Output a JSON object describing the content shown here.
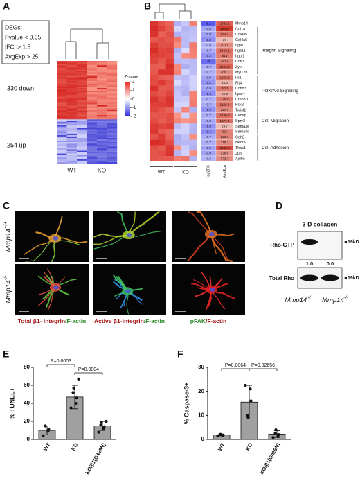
{
  "panels": {
    "A": {
      "label": "A",
      "box": [
        "DEGs:",
        "Pvalue < 0.05",
        "|FC| > 1.5",
        "AvgExp > 25"
      ],
      "down": "330 down",
      "up": "254 up",
      "groups": [
        "WT",
        "KO"
      ],
      "legend_title": "Z-score",
      "legend_ticks": [
        2,
        1,
        0,
        -1,
        -2
      ]
    },
    "B": {
      "label": "B",
      "genes": [
        "Mmp14",
        "Col1a1",
        "Col4a5",
        "Col4a6",
        "Itga1",
        "Itga11",
        "Itgbl1",
        "Ccn3",
        "Zyx",
        "Myl12b",
        "Irs1",
        "Flt4",
        "Ccnd3",
        "Lpar4",
        "Creb3l1",
        "Pck2",
        "Twist1",
        "Cemip",
        "Spry2",
        "Sema3e",
        "Sema3c",
        "Cdh2",
        "Nedd9",
        "Thbs1",
        "Jup",
        "Ajuba"
      ],
      "log2FC": [
        -5.1,
        -0.8,
        -0.9,
        -1.3,
        -0.6,
        -0.7,
        -1.2,
        -3,
        -0.7,
        -0.7,
        -0.9,
        -1.2,
        -0.9,
        -1.4,
        -0.7,
        -0.7,
        -1.2,
        -0.7,
        -0.8,
        -1.3,
        -1.4,
        -0.7,
        -0.7,
        -0.9,
        -0.9,
        -0.6
      ],
      "AvgExp": [
        2932.1,
        19419,
        944.4,
        27,
        301.9,
        1450.1,
        813,
        481.6,
        2656.3,
        266.1,
        1066.3,
        40.3,
        783.5,
        62.3,
        778.6,
        1128.8,
        327.7,
        1460.7,
        1377.6,
        29.7,
        482.4,
        536.7,
        316.3,
        8289.6,
        238.9,
        373.7
      ],
      "columns": [
        "log2FC",
        "AvgExp"
      ],
      "groups": [
        "WT",
        "KO"
      ],
      "pathways": [
        "Integrin Signaling",
        "PI3K/Akt Signaling",
        "Cell Migration",
        "Cell Adhesion"
      ]
    },
    "C": {
      "label": "C",
      "rows": [
        {
          "gene": "Mmp14",
          "genotype": "+/+"
        },
        {
          "gene": "Mmp14",
          "genotype": "-/-"
        }
      ],
      "captions": [
        [
          {
            "text": "Total β1- integrin",
            "color": "#a01414"
          },
          {
            "text": "/F-actin",
            "color": "#2a8a2a"
          }
        ],
        [
          {
            "text": "Active β1-integrin",
            "color": "#a01414"
          },
          {
            "text": "/F-actin",
            "color": "#2a8a2a"
          }
        ],
        [
          {
            "text": "pFAK",
            "color": "#2a8a2a"
          },
          {
            "text": "/F-actin",
            "color": "#a01414"
          }
        ]
      ]
    },
    "D": {
      "label": "D",
      "title": "3-D collagen",
      "rows": [
        "Rho-GTP",
        "Total Rho"
      ],
      "size": "19kD",
      "quant": [
        "1.0",
        "0.0"
      ],
      "lanes": [
        {
          "gene": "Mmp14",
          "genotype": "+/+"
        },
        {
          "gene": "Mmp14",
          "genotype": "-/-"
        }
      ]
    }
  },
  "chart_data": [
    {
      "type": "bar",
      "panel": "E",
      "ylabel": "% TUNEL+",
      "categories": [
        "WT",
        "KO",
        "KO/β1(G429N)"
      ],
      "values": [
        10,
        47,
        15
      ],
      "errors": [
        5,
        13,
        5
      ],
      "points": [
        [
          4,
          9,
          11,
          15
        ],
        [
          35,
          40,
          46,
          52,
          57,
          67
        ],
        [
          8,
          12,
          14,
          16,
          19,
          20
        ]
      ],
      "color": "#a0a0a0",
      "ylim": [
        0,
        80
      ],
      "yticks": [
        0,
        20,
        40,
        60,
        80
      ],
      "annotations": [
        "P=0.0003",
        "P=0.0004"
      ]
    },
    {
      "type": "bar",
      "panel": "F",
      "ylabel": "% Caspase-3+",
      "categories": [
        "WT",
        "KO",
        "KO/β1(G429N)"
      ],
      "values": [
        1.8,
        15.5,
        2.2
      ],
      "errors": [
        0.3,
        7,
        1.4
      ],
      "points": [
        [
          1.4,
          1.6,
          1.8,
          2.0,
          2.1
        ],
        [
          22.5,
          21,
          16,
          10,
          9
        ],
        [
          0.8,
          1.2,
          2,
          2.5,
          4
        ]
      ],
      "color": "#a0a0a0",
      "ylim": [
        0,
        30
      ],
      "yticks": [
        0,
        10,
        20,
        30
      ],
      "annotations": [
        "P=0.0064",
        "P=0.02656"
      ]
    }
  ]
}
